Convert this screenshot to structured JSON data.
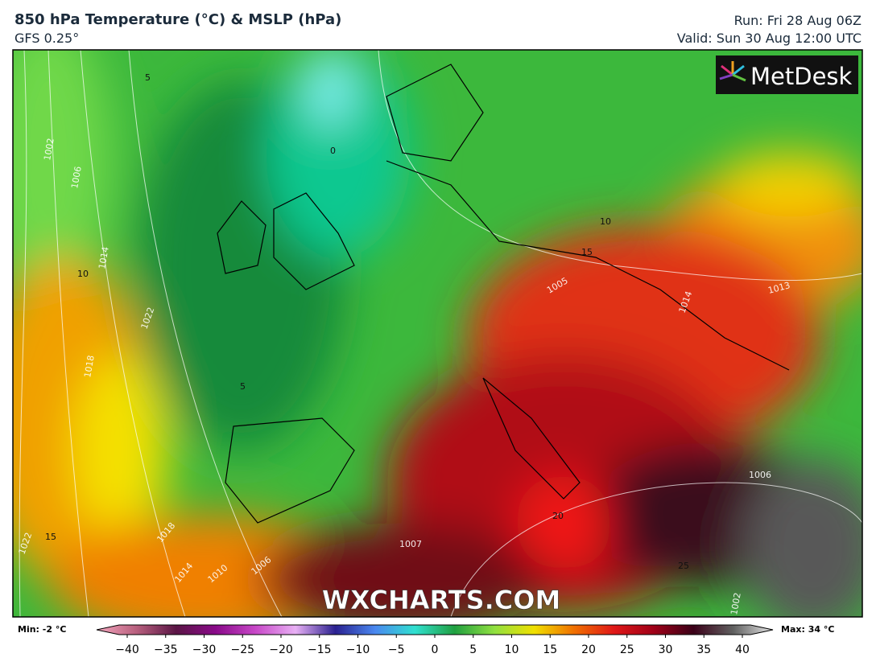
{
  "header": {
    "title": "850 hPa Temperature (°C) & MSLP (hPa)",
    "model": "GFS 0.25°",
    "run": "Run: Fri 28 Aug 06Z",
    "valid": "Valid: Sun 30 Aug 12:00 UTC"
  },
  "logo": "MetDesk",
  "watermark": "WXCHARTS.COM",
  "map_labels": [
    "1002",
    "1006",
    "1014",
    "1022",
    "1018",
    "1010",
    "1006",
    "1014",
    "1018",
    "1022",
    "1005",
    "1014",
    "1013",
    "1006",
    "1007",
    "1002",
    "5",
    "10",
    "15",
    "20",
    "25",
    "0",
    "5",
    "10",
    "15"
  ],
  "colorbar": {
    "min_label": "Min: -2 °C",
    "max_label": "Max: 34 °C",
    "ticks": [
      {
        "value": -40,
        "label": "−40"
      },
      {
        "value": -35,
        "label": "−35"
      },
      {
        "value": -30,
        "label": "−30"
      },
      {
        "value": -25,
        "label": "−25"
      },
      {
        "value": -20,
        "label": "−20"
      },
      {
        "value": -15,
        "label": "−15"
      },
      {
        "value": -10,
        "label": "−10"
      },
      {
        "value": -5,
        "label": "−5"
      },
      0,
      5,
      10,
      15,
      20,
      25,
      30,
      35,
      40
    ],
    "colors": [
      "#f4a6bd",
      "#b8607e",
      "#5a1545",
      "#8a0a8a",
      "#c848c8",
      "#e8b0f4",
      "#2a2090",
      "#4a88f0",
      "#30e0d0",
      "#20a040",
      "#90e040",
      "#f0e000",
      "#f07000",
      "#e01818",
      "#a00018",
      "#3a0018",
      "#606060",
      "#e8e8e8"
    ]
  }
}
